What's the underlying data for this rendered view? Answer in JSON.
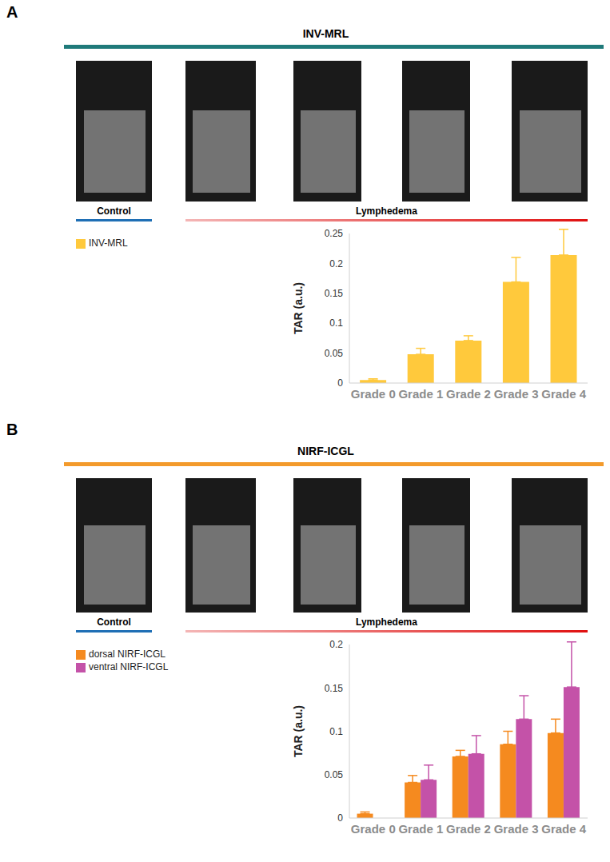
{
  "chart_data": [
    {
      "panel": "A",
      "type": "bar",
      "title": "INV-MRL",
      "title_color": "#1f7a7a",
      "annotations": [
        "Control",
        "Lymphedema"
      ],
      "categories": [
        "Grade 0",
        "Grade 1",
        "Grade 2",
        "Grade 3",
        "Grade 4"
      ],
      "series": [
        {
          "name": "INV-MRL",
          "color": "#ffc93c",
          "values": [
            0.005,
            0.048,
            0.071,
            0.169,
            0.214
          ],
          "errors": [
            0.002,
            0.01,
            0.008,
            0.041,
            0.043
          ]
        }
      ],
      "y_label": "TAR (a.u.)",
      "ylim": [
        0,
        0.25
      ],
      "yticks": [
        0,
        0.05,
        0.1,
        0.15,
        0.2,
        0.25
      ],
      "grid": false,
      "legend": "top-left"
    },
    {
      "panel": "B",
      "type": "bar",
      "title": "NIRF-ICGL",
      "title_color": "#f39a2b",
      "annotations": [
        "Control",
        "Lymphedema"
      ],
      "categories": [
        "Grade 0",
        "Grade 1",
        "Grade 2",
        "Grade 3",
        "Grade 4"
      ],
      "series": [
        {
          "name": "dorsal NIRF-ICGL",
          "color": "#f58a1f",
          "values": [
            0.005,
            0.041,
            0.071,
            0.085,
            0.098
          ],
          "errors": [
            0.002,
            0.008,
            0.007,
            0.015,
            0.016
          ]
        },
        {
          "name": "ventral NIRF-ICGL",
          "color": "#c452a8",
          "values": [
            null,
            0.044,
            0.074,
            0.114,
            0.151
          ],
          "errors": [
            null,
            0.017,
            0.021,
            0.027,
            0.052
          ]
        }
      ],
      "y_label": "TAR (a.u.)",
      "ylim": [
        0,
        0.2
      ],
      "yticks": [
        0,
        0.05,
        0.1,
        0.15,
        0.2
      ],
      "grid": false,
      "legend": "top-left"
    }
  ]
}
